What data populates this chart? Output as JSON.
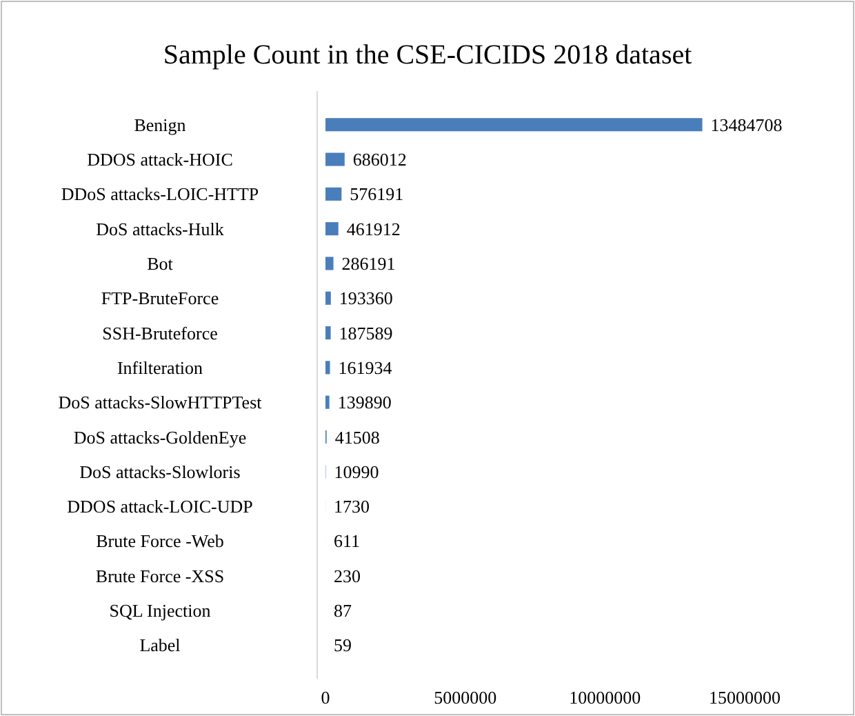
{
  "chart_data": {
    "type": "bar",
    "orientation": "horizontal",
    "title": "Sample Count in the CSE-CICIDS 2018 dataset",
    "categories": [
      "Benign",
      "DDOS attack-HOIC",
      "DDoS attacks-LOIC-HTTP",
      "DoS attacks-Hulk",
      "Bot",
      "FTP-BruteForce",
      "SSH-Bruteforce",
      "Infilteration",
      "DoS attacks-SlowHTTPTest",
      "DoS attacks-GoldenEye",
      "DoS attacks-Slowloris",
      "DDOS attack-LOIC-UDP",
      "Brute Force -Web",
      "Brute Force -XSS",
      "SQL Injection",
      "Label"
    ],
    "values": [
      13484708,
      686012,
      576191,
      461912,
      286191,
      193360,
      187589,
      161934,
      139890,
      41508,
      10990,
      1730,
      611,
      230,
      87,
      59
    ],
    "color": "#4a7ebb",
    "xlim": [
      0,
      15000000
    ],
    "xticks": [
      0,
      5000000,
      10000000,
      15000000
    ],
    "data_labels": true,
    "grid": false
  }
}
